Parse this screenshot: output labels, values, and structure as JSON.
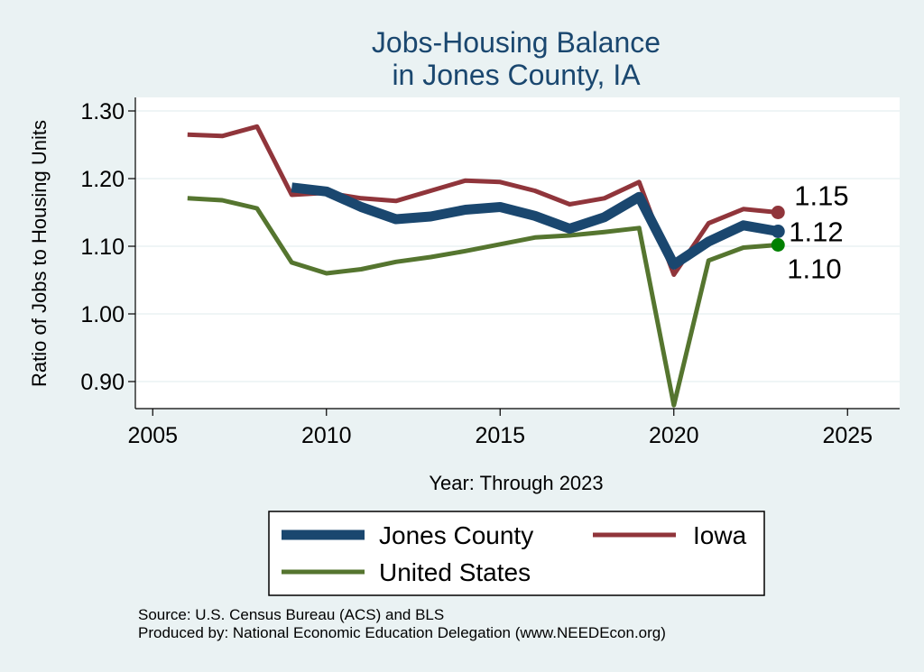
{
  "chart_data": {
    "type": "line",
    "title": [
      "Jobs-Housing Balance",
      "in Jones County, IA"
    ],
    "xlabel": "Year: Through 2023",
    "ylabel": "Ratio of Jobs to Housing Units",
    "xlim": [
      2004.5,
      2026.5
    ],
    "ylim": [
      0.86,
      1.32
    ],
    "xticks": [
      2005,
      2010,
      2015,
      2020,
      2025
    ],
    "yticks": [
      0.9,
      1.0,
      1.1,
      1.2,
      1.3
    ],
    "ytick_labels": [
      "0.90",
      "1.00",
      "1.10",
      "1.20",
      "1.30"
    ],
    "grid": true,
    "legend_position": "bottom",
    "series": [
      {
        "name": "Jones County",
        "color": "#1a476f",
        "x": [
          2009,
          2010,
          2011,
          2012,
          2013,
          2014,
          2015,
          2016,
          2017,
          2018,
          2019,
          2020,
          2021,
          2022,
          2023
        ],
        "values": [
          1.187,
          1.181,
          1.158,
          1.14,
          1.144,
          1.154,
          1.158,
          1.145,
          1.126,
          1.143,
          1.173,
          1.073,
          1.107,
          1.131,
          1.122
        ],
        "end_label": "1.12"
      },
      {
        "name": "Iowa",
        "color": "#90353b",
        "x": [
          2006,
          2007,
          2008,
          2009,
          2010,
          2011,
          2012,
          2013,
          2014,
          2015,
          2016,
          2017,
          2018,
          2019,
          2020,
          2021,
          2022,
          2023
        ],
        "values": [
          1.265,
          1.263,
          1.277,
          1.176,
          1.179,
          1.171,
          1.167,
          1.182,
          1.197,
          1.195,
          1.182,
          1.162,
          1.171,
          1.195,
          1.058,
          1.134,
          1.155,
          1.15
        ],
        "end_label": "1.15"
      },
      {
        "name": "United States",
        "color": "#55752f",
        "x": [
          2006,
          2007,
          2008,
          2009,
          2010,
          2011,
          2012,
          2013,
          2014,
          2015,
          2016,
          2017,
          2018,
          2019,
          2020,
          2021,
          2022,
          2023
        ],
        "values": [
          1.171,
          1.168,
          1.156,
          1.076,
          1.06,
          1.066,
          1.077,
          1.084,
          1.093,
          1.103,
          1.113,
          1.116,
          1.121,
          1.127,
          0.865,
          1.079,
          1.098,
          1.102
        ],
        "end_label": "1.10",
        "end_marker_color": "#008000"
      }
    ]
  },
  "notes": {
    "source": "Source: U.S. Census Bureau (ACS) and BLS",
    "produced_by": "Produced by: National Economic Education Delegation (www.NEEDEcon.org)"
  }
}
